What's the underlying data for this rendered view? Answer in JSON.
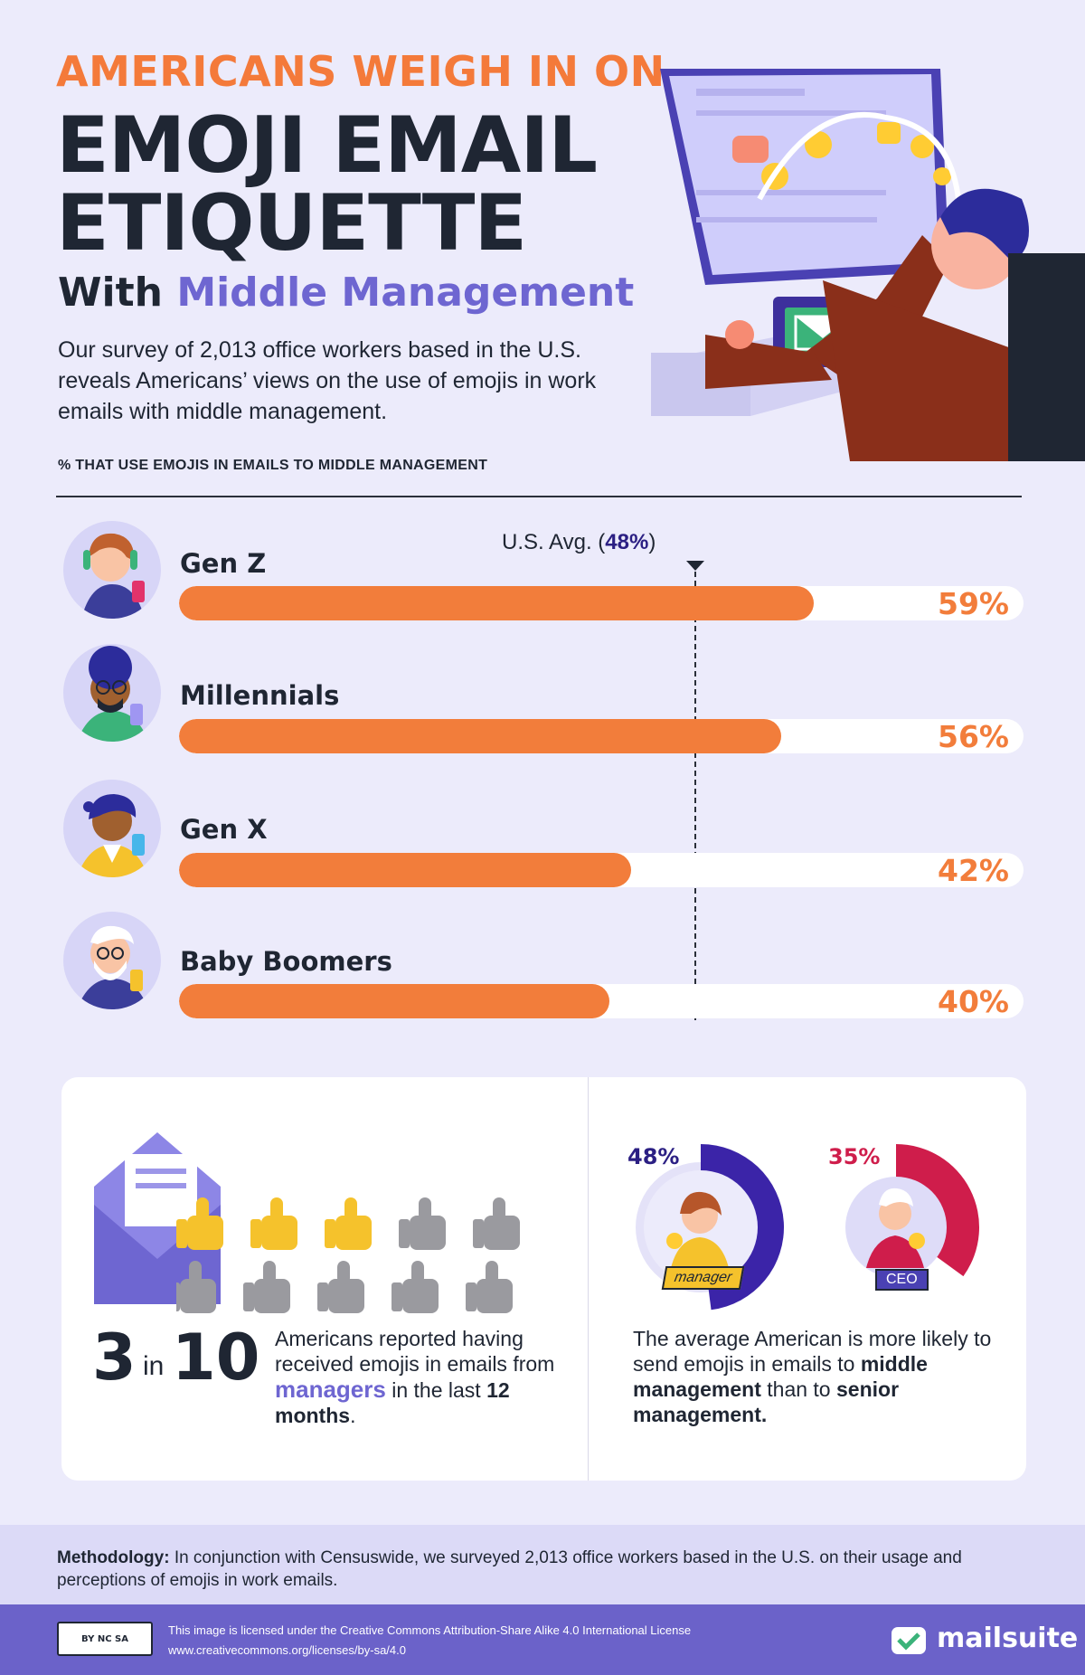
{
  "header": {
    "kicker": "AMERICANS WEIGH IN ON",
    "title": "EMOJI EMAIL ETIQUETTE",
    "subtitle_prefix": "With",
    "subtitle_accent": "Middle Management",
    "intro": "Our survey of 2,013 office workers based in the U.S. reveals Americans’ views on the use of emojis in work emails with middle management."
  },
  "colors": {
    "orange": "#f27d3b",
    "purple": "#6e66d1",
    "navy": "#2b1f83",
    "crimson": "#cf1d4b",
    "background": "#ecebfb"
  },
  "chart_data": {
    "type": "bar",
    "title": "% THAT USE EMOJIS IN EMAILS TO MIDDLE MANAGEMENT",
    "categories": [
      "Gen Z",
      "Millennials",
      "Gen X",
      "Baby Boomers"
    ],
    "values": [
      59,
      56,
      42,
      40
    ],
    "value_labels": [
      "59%",
      "56%",
      "42%",
      "40%"
    ],
    "ylim": [
      0,
      100
    ],
    "reference_line": {
      "label_prefix": "U.S.  Avg. (",
      "label_value": "48%",
      "label_suffix": ")",
      "value": 48
    },
    "orientation": "horizontal"
  },
  "stat": {
    "big_number": "3",
    "big_in": "in",
    "big_total": "10",
    "text_1": "Americans reported having received emojis in emails from",
    "highlight": "managers",
    "text_2": "in the last",
    "bold_end": "12 months",
    "text_end": ".",
    "thumbs_filled": 3,
    "thumbs_total": 10
  },
  "comparison": {
    "manager_pct": "48%",
    "manager_value": 48,
    "manager_label": "manager",
    "ceo_pct": "35%",
    "ceo_value": 35,
    "ceo_label": "CEO",
    "text_1": "The average American is more likely to send emojis in emails to",
    "bold_1": "middle management",
    "text_2": "than to",
    "bold_2": "senior management."
  },
  "methodology": {
    "label": "Methodology:",
    "text": "In conjunction with Censuswide, we surveyed 2,013 office workers based in the U.S. on their usage and perceptions of emojis in work emails."
  },
  "footer": {
    "cc_badge": "BY NC SA",
    "license_line1": "This image is licensed under the Creative Commons Attribution-Share Alike 4.0 International License",
    "license_line2": "www.creativecommons.org/licenses/by-sa/4.0",
    "brand": "mailsuite"
  }
}
